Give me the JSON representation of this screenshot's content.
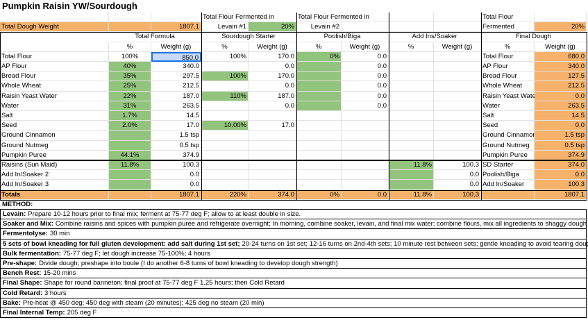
{
  "title": "Pumpkin Raisin YW/Sourdough",
  "header": {
    "row1": [
      null,
      null,
      null,
      "Total Flour Fermented in",
      null,
      "Total Flour Fermented in",
      null,
      null,
      null,
      "Total Flour",
      null
    ],
    "row2": [
      "Total Dough Weight",
      null,
      "1807.1",
      "Levain #1",
      "20%",
      "Levain #2",
      null,
      null,
      null,
      "Fermented",
      "20%"
    ],
    "groups": [
      "Total Formula",
      "Sourdough Starter",
      "Poolish/Biga",
      "Add Ins/Soaker",
      "Final Dough"
    ],
    "subheaders": [
      null,
      "%",
      "Weight (g)",
      "%",
      "Weight (g)",
      "%",
      "Weight (g)",
      "%",
      "Weight (g)",
      "%",
      "Weight (g)"
    ]
  },
  "rows": [
    [
      "Total Flour",
      "100%",
      "850.0",
      "100%",
      "170.0",
      "0%",
      "0.0",
      null,
      null,
      "Total Flour",
      "680.0"
    ],
    [
      "AP Flour",
      "40%",
      "340.0",
      null,
      "0.0",
      null,
      "0.0",
      null,
      null,
      "AP Flour",
      "340.0"
    ],
    [
      "Bread Flour",
      "35%",
      "297.5",
      "100%",
      "170.0",
      null,
      "0.0",
      null,
      null,
      "Bread Flour",
      "127.5"
    ],
    [
      "Whole Wheat",
      "25%",
      "212.5",
      null,
      "0.0",
      null,
      "0.0",
      null,
      null,
      "Whole Wheat",
      "212.5"
    ],
    [
      "Raisin Yeast Water",
      "22%",
      "187.0",
      "110%",
      "187.0",
      null,
      "0.0",
      null,
      null,
      "Raisin Yeast Water",
      "0.0"
    ],
    [
      "Water",
      "31%",
      "263.5",
      null,
      "0.0",
      null,
      "0.0",
      null,
      null,
      "Water",
      "263.5"
    ],
    [
      "Salt",
      "1.7%",
      "14.5",
      null,
      null,
      null,
      null,
      null,
      null,
      "Salt",
      "14.5"
    ],
    [
      "Seed",
      "2.0%",
      "17.0",
      "10.00%",
      "17.0",
      null,
      null,
      null,
      null,
      "Seed",
      "0.0"
    ],
    [
      "Ground Cinnamon",
      null,
      "1.5 tsp",
      null,
      null,
      null,
      null,
      null,
      null,
      "Ground Cinnamon",
      "1.5 tsp"
    ],
    [
      "Ground Nutmeg",
      null,
      "0.5 tsp",
      null,
      null,
      null,
      null,
      null,
      null,
      "Ground Nutmeg",
      "0.5 tsp"
    ],
    [
      "Pumpkin Puree",
      "44.1%",
      "374.9",
      null,
      null,
      null,
      null,
      null,
      null,
      "Pumpkin Puree",
      "374.9"
    ],
    [
      "Raisins (Sun Maid)",
      "11.8%",
      "100.3",
      null,
      null,
      null,
      null,
      "11.8%",
      "100.3",
      "SD Starter",
      "374.0"
    ],
    [
      "Add In/Soaker 2",
      null,
      "0.0",
      null,
      null,
      null,
      null,
      null,
      "0.0",
      "Poolish/Biga",
      "0.0"
    ],
    [
      "Add In/Soaker 3",
      null,
      "0.0",
      null,
      null,
      null,
      null,
      null,
      "0.0",
      "Add In/Soaker",
      "100.3"
    ]
  ],
  "totals": [
    "Totals",
    null,
    "1807.1",
    "220%",
    "374.0",
    "0%",
    "0.0",
    "11.8%",
    "100.3",
    null,
    "1807.1"
  ],
  "method": {
    "heading": "METHOD:",
    "steps": [
      {
        "label": "Levain:",
        "text": "Prepare 10-12 hours prior to final mix; ferment at 75-77 deg F; allow to at least double in size."
      },
      {
        "label": "Soaker and Mix:",
        "text": "Combine raisins and spices with pumpkin puree and refrigerate overnight; In morning, combine soaker, levain, and final mix water; combine flours, mix all ingredients to shaggy dough"
      },
      {
        "label": "Fermentolyse:",
        "text": "30 min"
      },
      {
        "label": "5 sets of bowl kneading for full gluten development:  add salt during 1st set;",
        "text": "20-24 turns on 1st set; 12-16 turns on 2nd-4th sets; 10 minute rest between sets; gentle kneading to avoid tearing dough"
      },
      {
        "label": "Bulk fermentation:",
        "text": "75-77 deg F; let dough increase 75-100%; 4 hours"
      },
      {
        "label": "Pre-shape:",
        "text": "Divide dough; preshape into boule (I do another 6-8 turns of bowl kneading to develop dough strength)"
      },
      {
        "label": "Bench Rest:",
        "text": "15-20 mins"
      },
      {
        "label": "Final Shape:",
        "text": "Shape for round banneton; final proof at 75-77 deg F 1.25 hours; then Cold Retard"
      },
      {
        "label": "Cold Retard:",
        "text": "3 hours"
      },
      {
        "label": "Bake:",
        "text": "Pre-heat @ 450 deg; 450 deg with steam (20 minutes); 425 deg no steam (20 min)"
      },
      {
        "label": "Final Internal Temp:",
        "text": "205 deg F"
      }
    ]
  }
}
